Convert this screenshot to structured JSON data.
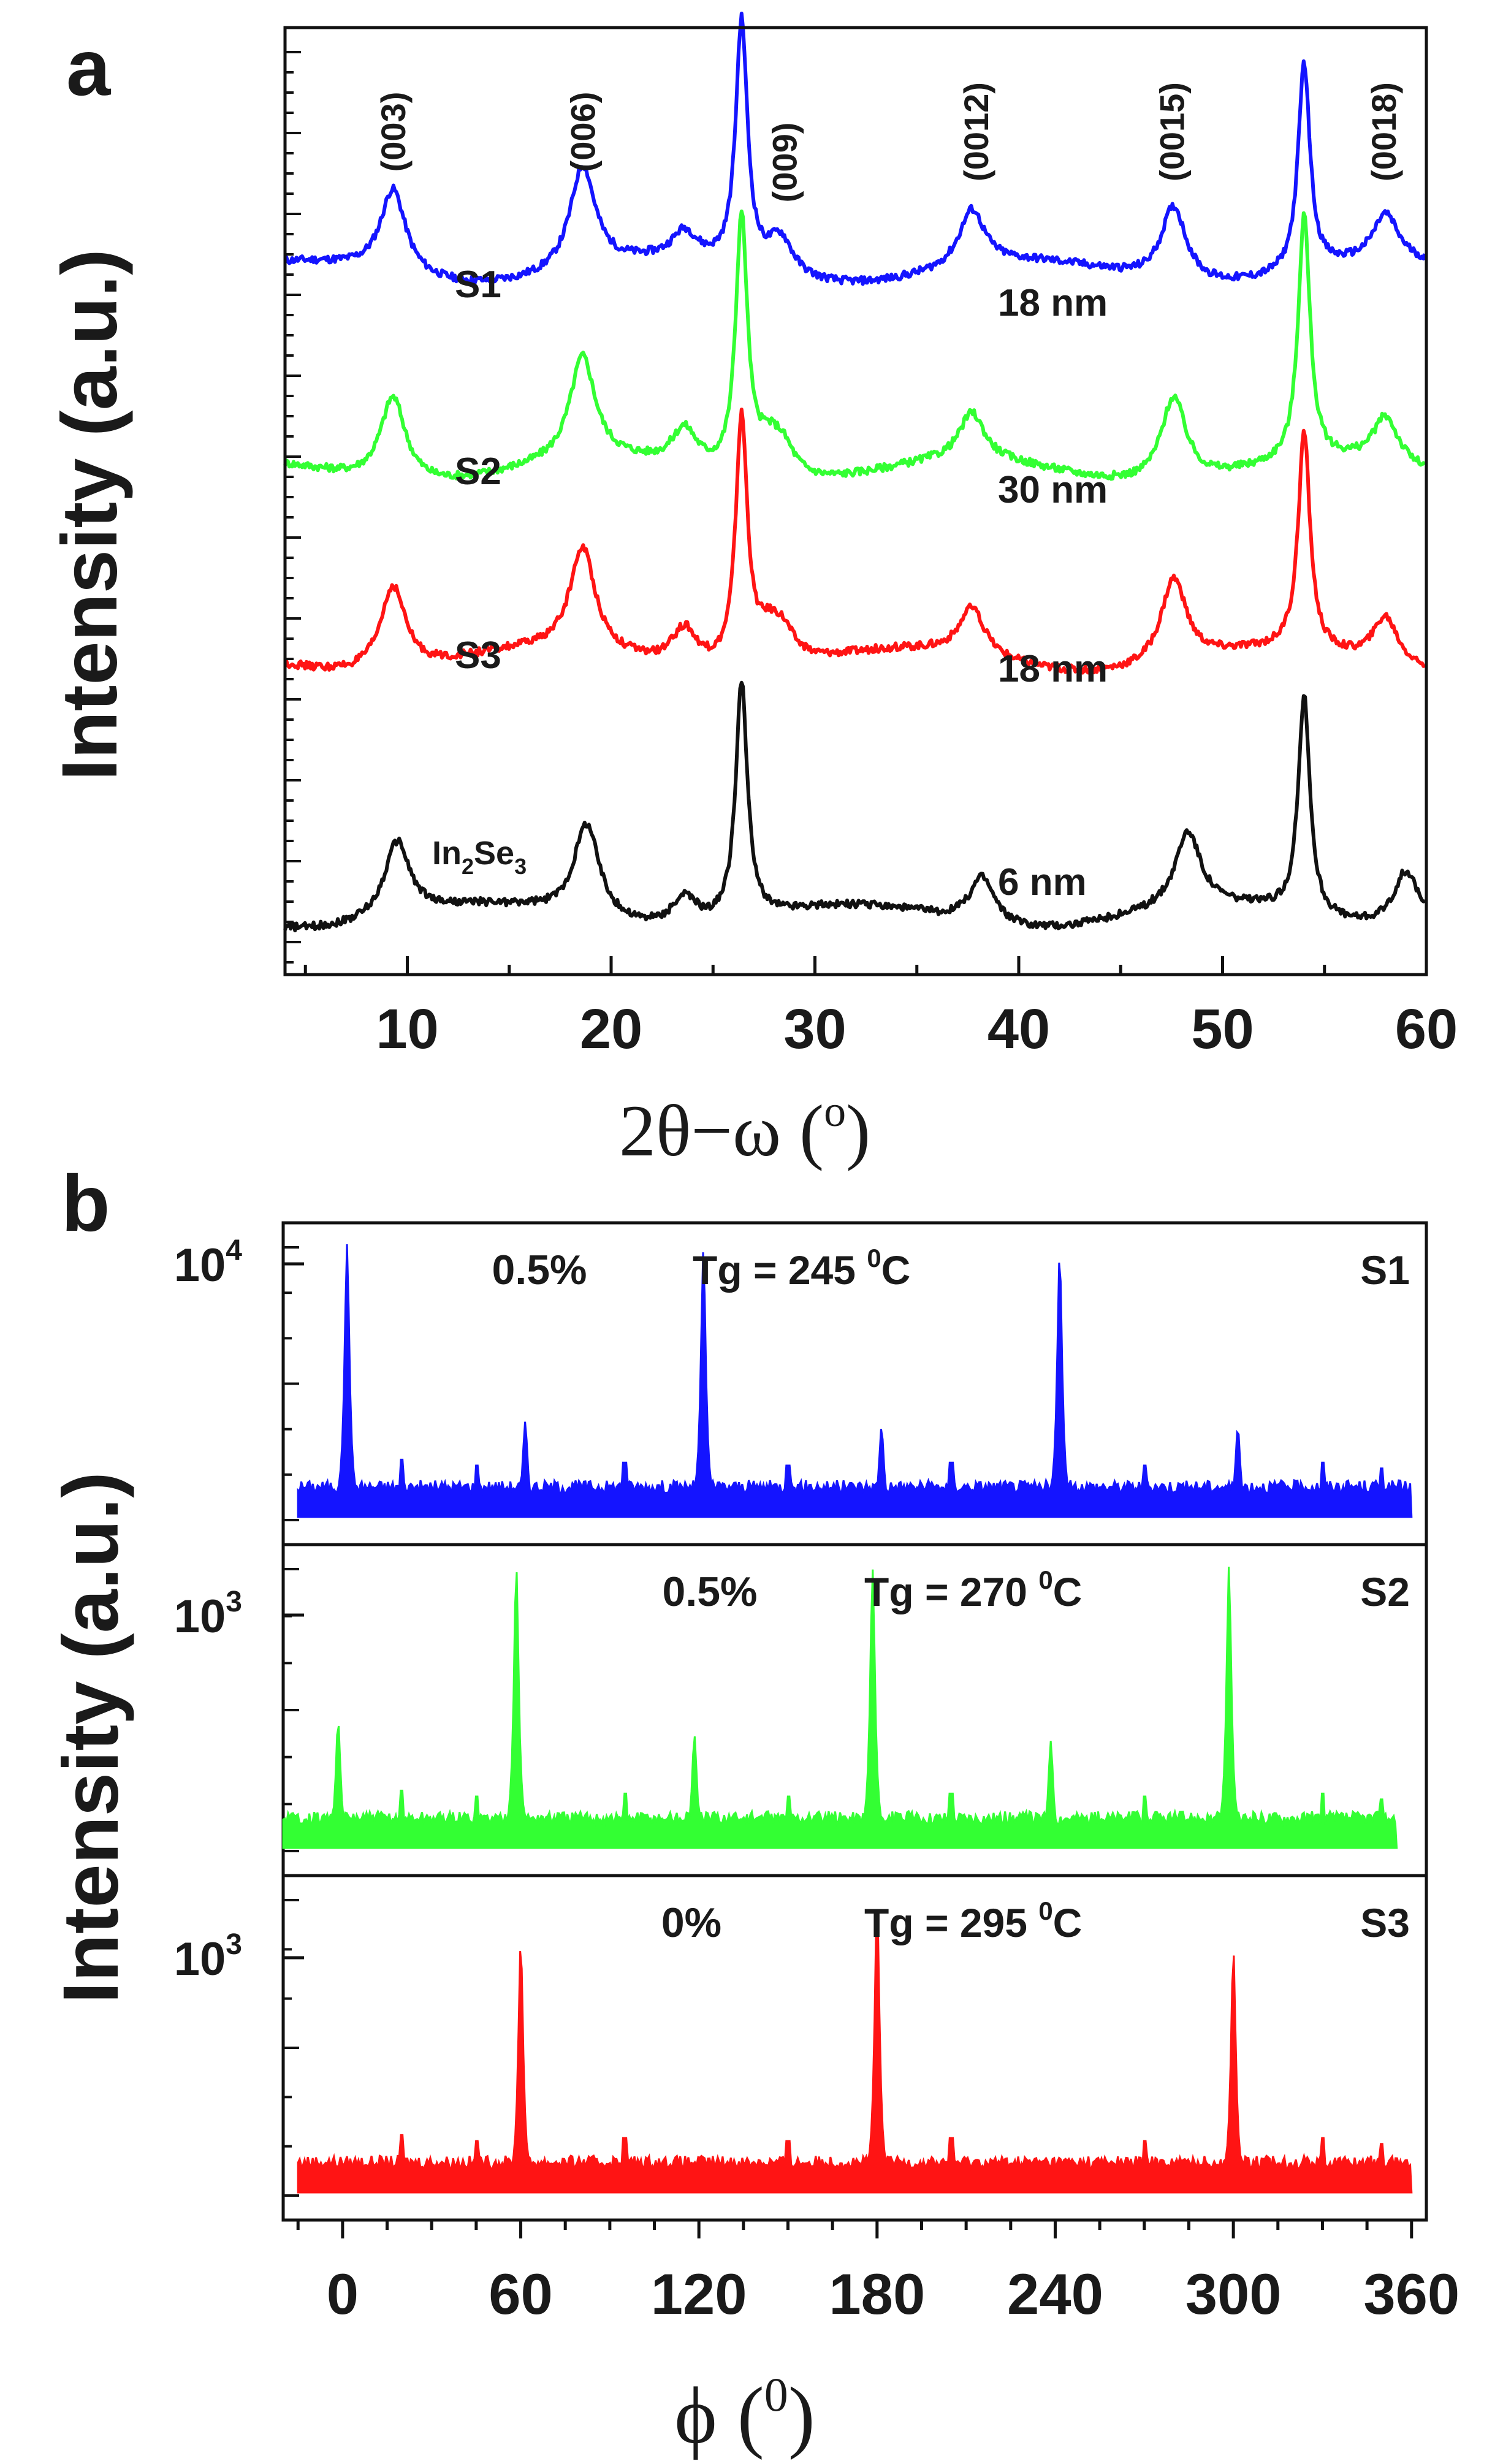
{
  "chart_data": [
    {
      "type": "line",
      "panel_label": "a",
      "xlabel": "2θ−ω (",
      "xlabel_sup": "o",
      "xlabel_close": ")",
      "ylabel": "Intensity (a.u.)",
      "xlim": [
        4,
        60
      ],
      "xticks": [
        10,
        20,
        30,
        40,
        50,
        60
      ],
      "xtick_labels": [
        "10",
        "20",
        "30",
        "40",
        "50",
        "60"
      ],
      "ylim": [
        0,
        1
      ],
      "grid": false,
      "peak_labels": [
        {
          "text": "(003)",
          "x": 9.3
        },
        {
          "text": "(006)",
          "x": 18.6
        },
        {
          "text": "(009)",
          "x": 28.5
        },
        {
          "text": "(0012)",
          "x": 37.9
        },
        {
          "text": "(0015)",
          "x": 47.5
        },
        {
          "text": "(0018)",
          "x": 57.9
        }
      ],
      "series": [
        {
          "name": "S1",
          "color": "#1414ff",
          "baseline": 0.74,
          "thickness_label": "18 nm",
          "peaks": [
            [
              9.3,
              0.09
            ],
            [
              18.6,
              0.11
            ],
            [
              23.6,
              0.03
            ],
            [
              26.4,
              0.26
            ],
            [
              28.3,
              0.04
            ],
            [
              37.7,
              0.06
            ],
            [
              47.6,
              0.08
            ],
            [
              54.0,
              0.22
            ],
            [
              58.0,
              0.05
            ]
          ]
        },
        {
          "name": "S2",
          "color": "#33ff33",
          "baseline": 0.53,
          "thickness_label": "30 nm",
          "peaks": [
            [
              9.3,
              0.09
            ],
            [
              18.6,
              0.11
            ],
            [
              23.6,
              0.04
            ],
            [
              26.4,
              0.27
            ],
            [
              27.7,
              0.03
            ],
            [
              28.4,
              0.03
            ],
            [
              37.7,
              0.05
            ],
            [
              47.6,
              0.09
            ],
            [
              54.0,
              0.26
            ],
            [
              58.0,
              0.05
            ]
          ]
        },
        {
          "name": "S3",
          "color": "#ff1414",
          "baseline": 0.33,
          "thickness_label": "18 nm",
          "peaks": [
            [
              9.3,
              0.09
            ],
            [
              18.6,
              0.11
            ],
            [
              23.6,
              0.04
            ],
            [
              26.4,
              0.26
            ],
            [
              27.7,
              0.03
            ],
            [
              28.4,
              0.03
            ],
            [
              37.7,
              0.05
            ],
            [
              47.6,
              0.09
            ],
            [
              54.0,
              0.23
            ],
            [
              58.0,
              0.05
            ]
          ]
        },
        {
          "name": "In2Se3",
          "label_main": "In",
          "label_sub1": "2",
          "label_mid": "Se",
          "label_sub2": "3",
          "color": "#111111",
          "baseline": 0.06,
          "thickness_label": "6 nm",
          "peaks": [
            [
              9.5,
              0.08
            ],
            [
              18.8,
              0.1
            ],
            [
              23.6,
              0.03
            ],
            [
              26.4,
              0.25
            ],
            [
              38.2,
              0.05
            ],
            [
              48.3,
              0.08
            ],
            [
              54.0,
              0.23
            ],
            [
              59.0,
              0.06
            ]
          ]
        }
      ]
    },
    {
      "type": "line",
      "panel_label": "b",
      "xlabel": "ϕ (",
      "xlabel_sup": "0",
      "xlabel_close": ")",
      "ylabel": "Intensity (a.u.)",
      "xlim": [
        -20,
        365
      ],
      "xticks": [
        0,
        60,
        120,
        180,
        240,
        300,
        360
      ],
      "xtick_labels": [
        "0",
        "60",
        "120",
        "180",
        "240",
        "300",
        "360"
      ],
      "grid": false,
      "yscale": "log",
      "panels": [
        {
          "name": "S1",
          "color": "#1414ff",
          "ytick_base": "10",
          "ytick_exp": "4",
          "strain": "0.5%",
          "tg_text": "Tg = 245 ",
          "tg_sup": "0",
          "tg_unit": "C",
          "x_range": [
            -15,
            360
          ],
          "peaks": [
            [
              1.5,
              1.0
            ],
            [
              121.5,
              0.98
            ],
            [
              241.5,
              0.97
            ],
            [
              61.5,
              0.35
            ],
            [
              181.5,
              0.33
            ],
            [
              301.5,
              0.33
            ]
          ]
        },
        {
          "name": "S2",
          "color": "#33ff33",
          "ytick_base": "10",
          "ytick_exp": "3",
          "strain": "0.5%",
          "tg_text": "Tg = 270 ",
          "tg_sup": "0",
          "tg_unit": "C",
          "x_range": [
            -20,
            355
          ],
          "peaks": [
            [
              -1.5,
              0.45
            ],
            [
              118.5,
              0.4
            ],
            [
              238.5,
              0.38
            ],
            [
              58.5,
              1.0
            ],
            [
              178.5,
              0.99
            ],
            [
              298.5,
              1.0
            ]
          ]
        },
        {
          "name": "S3",
          "color": "#ff1414",
          "ytick_base": "10",
          "ytick_exp": "3",
          "strain": "0%",
          "tg_text": "Tg = 295 ",
          "tg_sup": "0",
          "tg_unit": "C",
          "x_range": [
            -15,
            360
          ],
          "peaks": [
            [
              60,
              0.85
            ],
            [
              180,
              1.0
            ],
            [
              300,
              0.82
            ]
          ]
        }
      ]
    }
  ]
}
